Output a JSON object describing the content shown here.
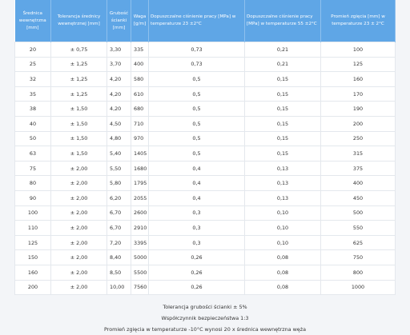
{
  "table": {
    "headers": [
      "Średnica wewnętrzna [mm]",
      "Tolerancja średnicy wewnętrznej [mm]",
      "Grubość ścianki [mm]",
      "Waga [g/m]",
      "Dopuszczalne ciśnienie pracy [MPa] w temperaturze 23 ±2°C",
      "Dopuszczalne ciśnienie pracy [MPa] w temperaturze 55 ±2°C",
      "Promień zgięcia [mm] w temperaturze 23 ± 2°C"
    ],
    "rows": [
      [
        "20",
        "± 0,75",
        "3,30",
        "335",
        "0,73",
        "0,21",
        "100"
      ],
      [
        "25",
        "± 1,25",
        "3,70",
        "400",
        "0,73",
        "0,21",
        "125"
      ],
      [
        "32",
        "± 1,25",
        "4,20",
        "580",
        "0,5",
        "0,15",
        "160"
      ],
      [
        "35",
        "± 1,25",
        "4,20",
        "610",
        "0,5",
        "0,15",
        "170"
      ],
      [
        "38",
        "± 1,50",
        "4,20",
        "680",
        "0,5",
        "0,15",
        "190"
      ],
      [
        "40",
        "± 1,50",
        "4,50",
        "710",
        "0,5",
        "0,15",
        "200"
      ],
      [
        "50",
        "± 1,50",
        "4,80",
        "970",
        "0,5",
        "0,15",
        "250"
      ],
      [
        "63",
        "± 1,50",
        "5,40",
        "1405",
        "0,5",
        "0,15",
        "315"
      ],
      [
        "75",
        "± 2,00",
        "5,50",
        "1680",
        "0,4",
        "0,13",
        "375"
      ],
      [
        "80",
        "± 2,00",
        "5,80",
        "1795",
        "0,4",
        "0,13",
        "400"
      ],
      [
        "90",
        "± 2,00",
        "6,20",
        "2055",
        "0,4",
        "0,13",
        "450"
      ],
      [
        "100",
        "± 2,00",
        "6,70",
        "2600",
        "0,3",
        "0,10",
        "500"
      ],
      [
        "110",
        "± 2,00",
        "6,70",
        "2910",
        "0,3",
        "0,10",
        "550"
      ],
      [
        "125",
        "± 2,00",
        "7,20",
        "3395",
        "0,3",
        "0,10",
        "625"
      ],
      [
        "150",
        "± 2,00",
        "8,40",
        "5000",
        "0,26",
        "0,08",
        "750"
      ],
      [
        "160",
        "± 2,00",
        "8,50",
        "5500",
        "0,26",
        "0,08",
        "800"
      ],
      [
        "200",
        "± 2,00",
        "10,00",
        "7560",
        "0,26",
        "0,08",
        "1000"
      ]
    ]
  },
  "notes": [
    "Tolerancja grubości ścianki ± 5%",
    "Współczynnik bezpieczeństwa 1:3",
    "Promień zgięcia w temperaturze -10°C wynosi 20 x średnica wewnętrzna węża"
  ]
}
